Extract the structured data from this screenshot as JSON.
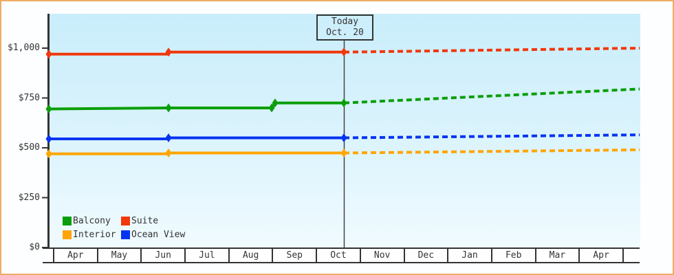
{
  "colors": {
    "frame_border": "#eead63",
    "plot_bg_top": "#c9edfb",
    "plot_bg_bottom": "#f0fbff",
    "axis": "#333333",
    "today_line": "#444444",
    "today_box_bg": "#cdeefb",
    "text": "#333333",
    "suite": "#f0380c",
    "balcony": "#0a9e0a",
    "interior": "#ffa502",
    "ocean_view": "#0534f0"
  },
  "today_box": {
    "line1": "Today",
    "line2": "Oct. 20"
  },
  "legend": [
    {
      "label": "Balcony",
      "color": "#0a9e0a"
    },
    {
      "label": "Suite",
      "color": "#f0380c"
    },
    {
      "label": "Interior",
      "color": "#ffa502"
    },
    {
      "label": "Ocean View",
      "color": "#0534f0"
    }
  ],
  "chart_data": {
    "type": "line",
    "title": "",
    "xlabel": "",
    "ylabel": "",
    "legend_position": "bottom-left",
    "grid": false,
    "x_axis": {
      "months": [
        "Apr",
        "May",
        "Jun",
        "Jul",
        "Aug",
        "Sep",
        "Oct",
        "Nov",
        "Dec",
        "Jan",
        "Feb",
        "Mar",
        "Apr"
      ],
      "today_label": "Oct. 20"
    },
    "y_axis": {
      "ticks": [
        1000,
        750,
        500,
        250,
        0
      ],
      "tick_labels": [
        "$1,000",
        "$750",
        "$500",
        "$250",
        "$0"
      ],
      "range": [
        0,
        1172
      ],
      "unit": "USD"
    },
    "today_t": 0.4994,
    "note": "t = fraction of x-range (0 = chart start ~Apr, 1 = chart end ~late Apr next year); solid = actual price history, dashed = predicted prices after Today Oct. 20",
    "series": [
      {
        "name": "Interior",
        "color": "#ffa502",
        "actual": [
          {
            "t": 0,
            "price": 470
          },
          {
            "t": 0.2026,
            "price": 470
          },
          {
            "t": 0.2026,
            "price": 474
          },
          {
            "t": 0.4994,
            "price": 474
          }
        ],
        "predicted": [
          {
            "t": 0.4994,
            "price": 474
          },
          {
            "t": 1,
            "price": 490
          }
        ],
        "markers": [
          {
            "t": 0,
            "price": 470
          },
          {
            "t": 0.2026,
            "price": 474
          },
          {
            "t": 0.4994,
            "price": 474
          }
        ]
      },
      {
        "name": "Ocean View",
        "color": "#0534f0",
        "actual": [
          {
            "t": 0,
            "price": 545
          },
          {
            "t": 0.2026,
            "price": 545
          },
          {
            "t": 0.2026,
            "price": 550
          },
          {
            "t": 0.4994,
            "price": 550
          }
        ],
        "predicted": [
          {
            "t": 0.4994,
            "price": 550
          },
          {
            "t": 1,
            "price": 565
          }
        ],
        "markers": [
          {
            "t": 0,
            "price": 545
          },
          {
            "t": 0.2026,
            "price": 550
          },
          {
            "t": 0.4994,
            "price": 550
          }
        ]
      },
      {
        "name": "Balcony",
        "color": "#0a9e0a",
        "actual": [
          {
            "t": 0,
            "price": 695
          },
          {
            "t": 0.2026,
            "price": 700
          },
          {
            "t": 0.3772,
            "price": 700
          },
          {
            "t": 0.383,
            "price": 725
          },
          {
            "t": 0.4994,
            "price": 725
          }
        ],
        "predicted": [
          {
            "t": 0.4994,
            "price": 725
          },
          {
            "t": 1,
            "price": 795
          }
        ],
        "markers": [
          {
            "t": 0,
            "price": 695
          },
          {
            "t": 0.2026,
            "price": 700
          },
          {
            "t": 0.3772,
            "price": 700
          },
          {
            "t": 0.383,
            "price": 725
          },
          {
            "t": 0.4994,
            "price": 725
          }
        ]
      },
      {
        "name": "Suite",
        "color": "#f0380c",
        "actual": [
          {
            "t": 0,
            "price": 970
          },
          {
            "t": 0.2026,
            "price": 970
          },
          {
            "t": 0.2026,
            "price": 980
          },
          {
            "t": 0.4994,
            "price": 980
          }
        ],
        "predicted": [
          {
            "t": 0.4994,
            "price": 980
          },
          {
            "t": 1,
            "price": 1000
          }
        ],
        "markers": [
          {
            "t": 0,
            "price": 970
          },
          {
            "t": 0.2026,
            "price": 980
          },
          {
            "t": 0.4994,
            "price": 980
          }
        ]
      }
    ]
  }
}
